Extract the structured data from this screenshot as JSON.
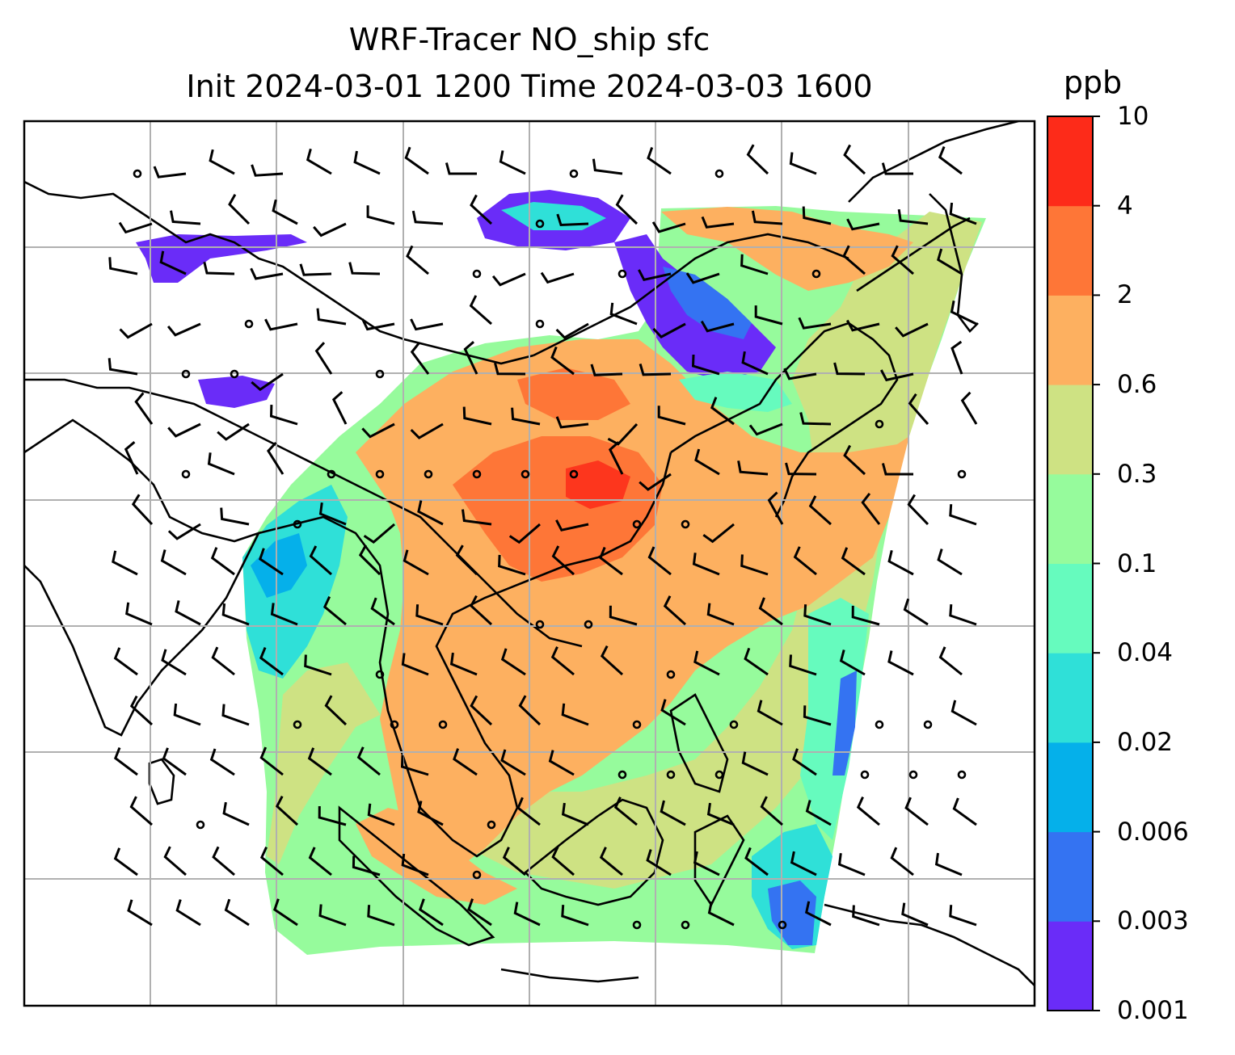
{
  "title": {
    "line1": "WRF-Tracer NO_ship sfc",
    "line2": "Init 2024-03-01 1200 Time 2024-03-03 1600"
  },
  "colorbar": {
    "unit": "ppb",
    "tick_labels": [
      "0.001",
      "0.003",
      "0.006",
      "0.02",
      "0.04",
      "0.1",
      "0.3",
      "0.6",
      "2",
      "4",
      "10"
    ],
    "colors": [
      "#6a2cf8",
      "#3473f2",
      "#05b0ea",
      "#2fe0d8",
      "#66fbbe",
      "#96fb9c",
      "#cee283",
      "#fdb060",
      "#fe7637",
      "#fd2b19"
    ]
  },
  "chart_data": {
    "type": "heatmap",
    "variable": "NO_ship sfc",
    "unit": "ppb",
    "levels": [
      0.001,
      0.003,
      0.006,
      0.02,
      0.04,
      0.1,
      0.3,
      0.6,
      2,
      4,
      10
    ],
    "overlays": [
      "coastlines",
      "country borders",
      "lat-lon gridlines",
      "wind barbs"
    ],
    "grid": true
  }
}
